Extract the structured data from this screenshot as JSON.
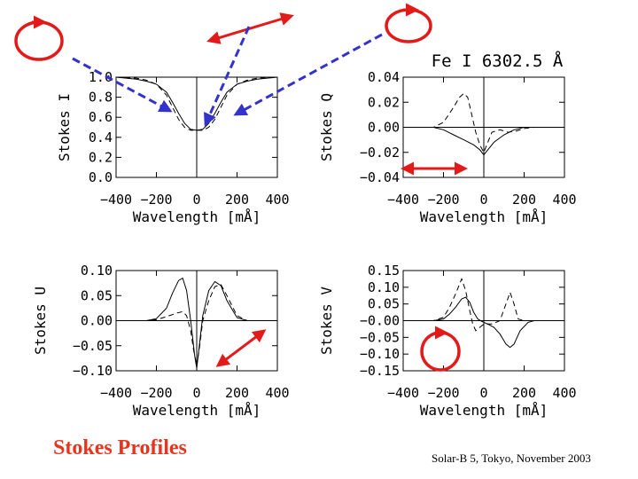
{
  "slide": {
    "title": "Stokes Profiles",
    "footer": "Solar-B 5, Tokyo, November 2003"
  },
  "colors": {
    "arrow": "#e21a1a",
    "dashed_arrow": "#3333cc",
    "title": "#e8341c"
  },
  "chart_data": [
    {
      "type": "line",
      "id": "I",
      "ylabel": "Stokes I",
      "xlabel": "Wavelength [mÅ]",
      "annotation": "",
      "xlim": [
        -400,
        400
      ],
      "ylim": [
        0.0,
        1.0
      ],
      "xticks": [
        -400,
        -200,
        0,
        200,
        400
      ],
      "xtick_labels": [
        "−400",
        "−200",
        "0",
        "200",
        "400"
      ],
      "yticks": [
        0.0,
        0.2,
        0.4,
        0.6,
        0.8,
        1.0
      ],
      "ytick_labels": [
        "0.0",
        "0.2",
        "0.4",
        "0.6",
        "0.8",
        "1.0"
      ],
      "zero_line": false,
      "series": [
        {
          "style": "solid",
          "x": [
            -400,
            -300,
            -250,
            -200,
            -150,
            -120,
            -90,
            -60,
            -30,
            0,
            30,
            60,
            90,
            120,
            150,
            200,
            250,
            300,
            400
          ],
          "y": [
            1.0,
            0.98,
            0.96,
            0.93,
            0.85,
            0.75,
            0.64,
            0.54,
            0.48,
            0.47,
            0.48,
            0.54,
            0.64,
            0.75,
            0.85,
            0.93,
            0.96,
            0.98,
            1.0
          ]
        },
        {
          "style": "dashed",
          "x": [
            -400,
            -300,
            -250,
            -200,
            -150,
            -120,
            -90,
            -60,
            -30,
            0,
            30,
            60,
            90,
            120,
            150,
            200,
            250,
            300,
            400
          ],
          "y": [
            1.0,
            0.99,
            0.97,
            0.93,
            0.82,
            0.7,
            0.58,
            0.5,
            0.47,
            0.47,
            0.47,
            0.5,
            0.58,
            0.7,
            0.82,
            0.93,
            0.97,
            0.99,
            1.0
          ]
        }
      ]
    },
    {
      "type": "line",
      "id": "Q",
      "ylabel": "Stokes Q",
      "xlabel": "Wavelength [mÅ]",
      "annotation": "Fe I 6302.5 Å",
      "xlim": [
        -400,
        400
      ],
      "ylim": [
        -0.04,
        0.04
      ],
      "xticks": [
        -400,
        -200,
        0,
        200,
        400
      ],
      "xtick_labels": [
        "−400",
        "−200",
        "0",
        "200",
        "400"
      ],
      "yticks": [
        -0.04,
        -0.02,
        0.0,
        0.02,
        0.04
      ],
      "ytick_labels": [
        "−0.04",
        "−0.02",
        "0.00",
        "0.02",
        "0.04"
      ],
      "zero_line": true,
      "series": [
        {
          "style": "solid",
          "x": [
            -400,
            -250,
            -200,
            -150,
            -100,
            -50,
            -20,
            0,
            20,
            50,
            100,
            150,
            200,
            250,
            400
          ],
          "y": [
            0,
            0,
            -0.002,
            -0.006,
            -0.01,
            -0.014,
            -0.018,
            -0.022,
            -0.018,
            -0.012,
            -0.006,
            -0.002,
            0,
            0,
            0
          ]
        },
        {
          "style": "dashed",
          "x": [
            -400,
            -250,
            -200,
            -150,
            -120,
            -100,
            -80,
            -60,
            -40,
            -20,
            0,
            20,
            40,
            80,
            120,
            160,
            200,
            250,
            400
          ],
          "y": [
            0,
            0,
            0.004,
            0.016,
            0.024,
            0.027,
            0.024,
            0.01,
            -0.004,
            -0.014,
            -0.02,
            -0.012,
            -0.004,
            -0.002,
            -0.004,
            -0.003,
            -0.001,
            0,
            0
          ]
        }
      ]
    },
    {
      "type": "line",
      "id": "U",
      "ylabel": "Stokes U",
      "xlabel": "Wavelength [mÅ]",
      "annotation": "",
      "xlim": [
        -400,
        400
      ],
      "ylim": [
        -0.1,
        0.1
      ],
      "xticks": [
        -400,
        -200,
        0,
        200,
        400
      ],
      "xtick_labels": [
        "−400",
        "−200",
        "0",
        "200",
        "400"
      ],
      "yticks": [
        -0.1,
        -0.05,
        0.0,
        0.05,
        0.1
      ],
      "ytick_labels": [
        "−0.10",
        "−0.05",
        "0.00",
        "0.05",
        "0.10"
      ],
      "zero_line": true,
      "series": [
        {
          "style": "solid",
          "x": [
            -400,
            -250,
            -200,
            -150,
            -120,
            -90,
            -70,
            -50,
            -30,
            -10,
            0,
            10,
            30,
            60,
            90,
            120,
            150,
            200,
            250,
            400
          ],
          "y": [
            0,
            0,
            0.004,
            0.025,
            0.055,
            0.08,
            0.085,
            0.06,
            0.0,
            -0.07,
            -0.095,
            -0.06,
            0.01,
            0.06,
            0.078,
            0.07,
            0.04,
            0.006,
            0,
            0
          ]
        },
        {
          "style": "dashed",
          "x": [
            -400,
            -250,
            -200,
            -150,
            -100,
            -70,
            -50,
            -30,
            -15,
            0,
            15,
            30,
            60,
            90,
            120,
            150,
            200,
            250,
            400
          ],
          "y": [
            0,
            0,
            0.002,
            0.008,
            0.015,
            0.018,
            0.01,
            -0.02,
            -0.06,
            -0.09,
            -0.05,
            0.0,
            0.04,
            0.068,
            0.072,
            0.05,
            0.01,
            0,
            0
          ]
        }
      ]
    },
    {
      "type": "line",
      "id": "V",
      "ylabel": "Stokes V",
      "xlabel": "Wavelength [mÅ]",
      "annotation": "",
      "xlim": [
        -400,
        400
      ],
      "ylim": [
        -0.15,
        0.15
      ],
      "xticks": [
        -400,
        -200,
        0,
        200,
        400
      ],
      "xtick_labels": [
        "−400",
        "−200",
        "0",
        "200",
        "400"
      ],
      "yticks": [
        -0.15,
        -0.1,
        -0.05,
        0.0,
        0.05,
        0.1,
        0.15
      ],
      "ytick_labels": [
        "−0.15",
        "−0.10",
        "−0.05",
        "−0.00",
        "0.05",
        "0.10",
        "0.15"
      ],
      "zero_line": true,
      "series": [
        {
          "style": "solid",
          "x": [
            -400,
            -250,
            -200,
            -170,
            -140,
            -110,
            -90,
            -70,
            -50,
            -30,
            -10,
            0,
            20,
            50,
            80,
            110,
            130,
            150,
            180,
            220,
            250,
            400
          ],
          "y": [
            0,
            0,
            0.005,
            0.02,
            0.04,
            0.065,
            0.07,
            0.055,
            0.025,
            0.005,
            -0.002,
            -0.005,
            -0.01,
            -0.02,
            -0.04,
            -0.07,
            -0.08,
            -0.07,
            -0.03,
            -0.005,
            0,
            0
          ]
        },
        {
          "style": "dashed",
          "x": [
            -400,
            -250,
            -200,
            -170,
            -140,
            -110,
            -90,
            -70,
            -55,
            -40,
            -20,
            0,
            40,
            80,
            110,
            130,
            150,
            170,
            200,
            250,
            400
          ],
          "y": [
            0,
            0,
            0.01,
            0.04,
            0.08,
            0.125,
            0.09,
            0.03,
            -0.01,
            -0.03,
            -0.02,
            -0.01,
            -0.01,
            0.0,
            0.05,
            0.085,
            0.05,
            0.005,
            0,
            0,
            0
          ]
        }
      ]
    }
  ]
}
